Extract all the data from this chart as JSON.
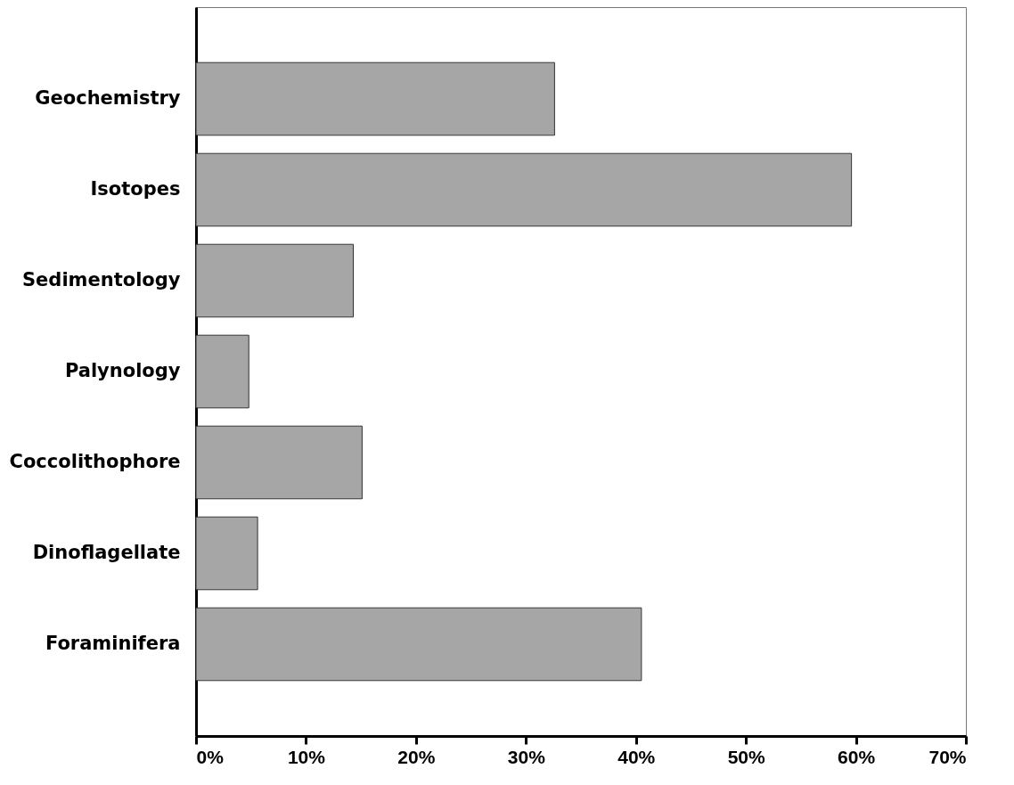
{
  "chart_data": {
    "type": "bar",
    "orientation": "horizontal",
    "categories": [
      "Geochemistry",
      "Isotopes",
      "Sedimentology",
      "Palynology",
      "Coccolithophore",
      "Dinoflagellate",
      "Foraminifera"
    ],
    "values": [
      32.6,
      59.6,
      14.3,
      4.8,
      15.1,
      5.6,
      40.5
    ],
    "color": "#a6a6a6",
    "xlim": [
      0,
      70
    ],
    "xticks": [
      {
        "value": 0,
        "label": "0%"
      },
      {
        "value": 10,
        "label": "10%"
      },
      {
        "value": 20,
        "label": "20%"
      },
      {
        "value": 30,
        "label": "30%"
      },
      {
        "value": 40,
        "label": "40%"
      },
      {
        "value": 50,
        "label": "50%"
      },
      {
        "value": 60,
        "label": "60%"
      },
      {
        "value": 70,
        "label": "70%"
      }
    ],
    "grid": false
  }
}
